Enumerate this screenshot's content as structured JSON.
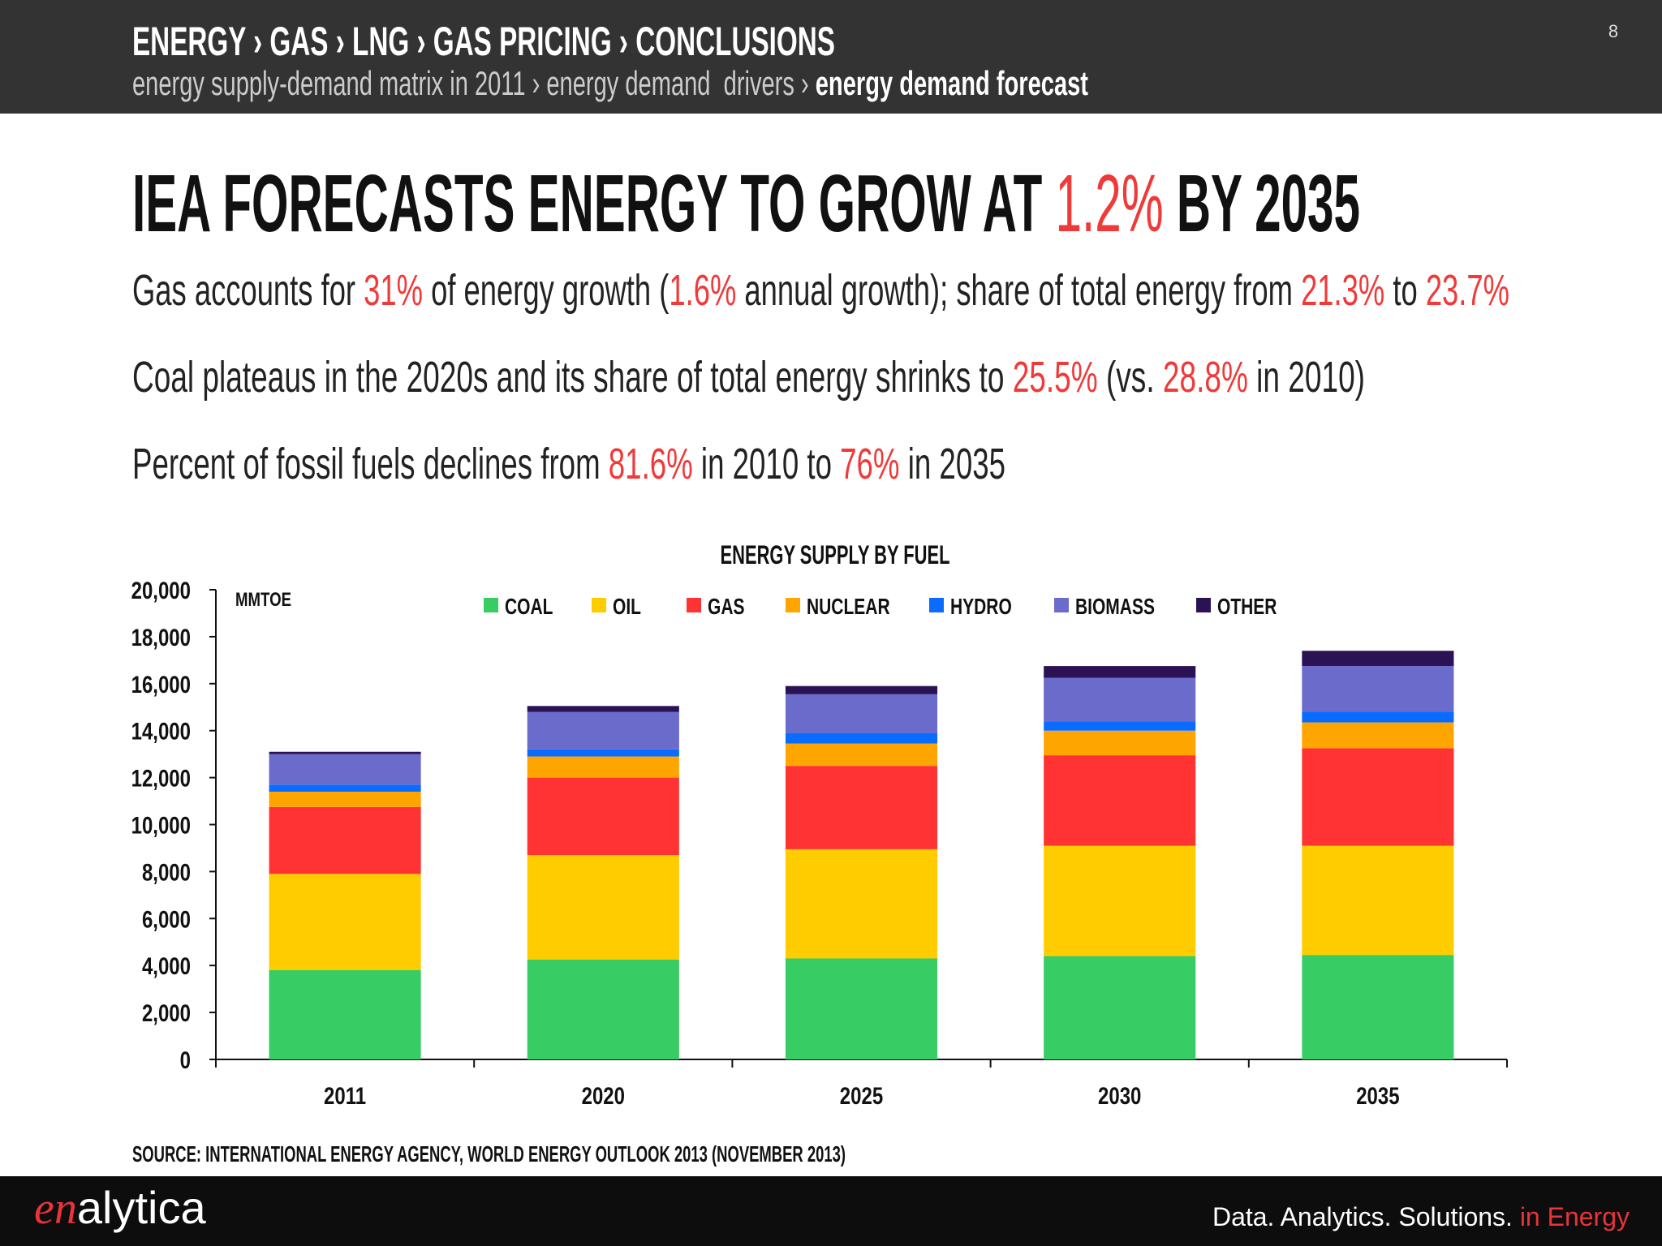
{
  "header": {
    "breadcrumb": "ENERGY › GAS › LNG › GAS PRICING › CONCLUSIONS",
    "subcrumb": [
      "energy supply-demand matrix in 2011 › energy demand  drivers › ",
      "energy demand forecast"
    ],
    "page": "8"
  },
  "headline": [
    "IEA FORECASTS ENERGY TO GROW AT ",
    "1.2%",
    " BY 2035"
  ],
  "bullets": [
    [
      "Gas accounts for ",
      "31%",
      " of energy growth (",
      "1.6%",
      " annual growth); share of total energy from ",
      "21.3%",
      " to ",
      "23.7%"
    ],
    [
      "Coal plateaus in the 2020s and its share of total energy shrinks to ",
      "25.5%",
      " (vs. ",
      "28.8%",
      " in 2010)"
    ],
    [
      "Percent of fossil fuels declines from ",
      "81.6%",
      " in 2010 to ",
      "76%",
      " in 2035"
    ]
  ],
  "chart_data": {
    "type": "stacked_bar",
    "title": "ENERGY SUPPLY BY FUEL",
    "y_unit": "MMTOE",
    "categories": [
      "2011",
      "2020",
      "2025",
      "2030",
      "2035"
    ],
    "series": [
      {
        "name": "COAL",
        "color": "#38cc64",
        "values": [
          3800,
          4250,
          4300,
          4400,
          4450
        ]
      },
      {
        "name": "OIL",
        "color": "#ffcc00",
        "values": [
          4100,
          4450,
          4650,
          4700,
          4650
        ]
      },
      {
        "name": "GAS",
        "color": "#ff3333",
        "values": [
          2850,
          3300,
          3550,
          3850,
          4150
        ]
      },
      {
        "name": "NUCLEAR",
        "color": "#ffa500",
        "values": [
          650,
          900,
          950,
          1050,
          1100
        ]
      },
      {
        "name": "HYDRO",
        "color": "#0a6cff",
        "values": [
          300,
          300,
          450,
          400,
          450
        ]
      },
      {
        "name": "BIOMASS",
        "color": "#6b6bcc",
        "values": [
          1300,
          1600,
          1650,
          1850,
          1950
        ]
      },
      {
        "name": "OTHER",
        "color": "#2a1254",
        "values": [
          100,
          250,
          350,
          500,
          650
        ]
      }
    ],
    "ylim": [
      0,
      20000
    ],
    "yticks": [
      0,
      {
        "value": 2000,
        "label": "2,000"
      },
      {
        "value": 4000,
        "label": "4,000"
      },
      {
        "value": 6000,
        "label": "6,000"
      },
      {
        "value": 8000,
        "label": "8,000"
      },
      {
        "value": 10000,
        "label": "10,000"
      },
      {
        "value": 12000,
        "label": "12,000"
      },
      {
        "value": 14000,
        "label": "14,000"
      },
      {
        "value": 16000,
        "label": "16,000"
      },
      {
        "value": 18000,
        "label": "18,000"
      },
      {
        "value": 20000,
        "label": "20,000"
      }
    ],
    "grid": false,
    "legend": "top",
    "source": "SOURCE: INTERNATIONAL ENERGY AGENCY, WORLD ENERGY OUTLOOK 2013 (NOVEMBER 2013)"
  },
  "footer": {
    "logo": [
      "en",
      "alytica"
    ],
    "tagline": [
      "Data. Analytics. Solutions. ",
      "in Energy"
    ]
  }
}
